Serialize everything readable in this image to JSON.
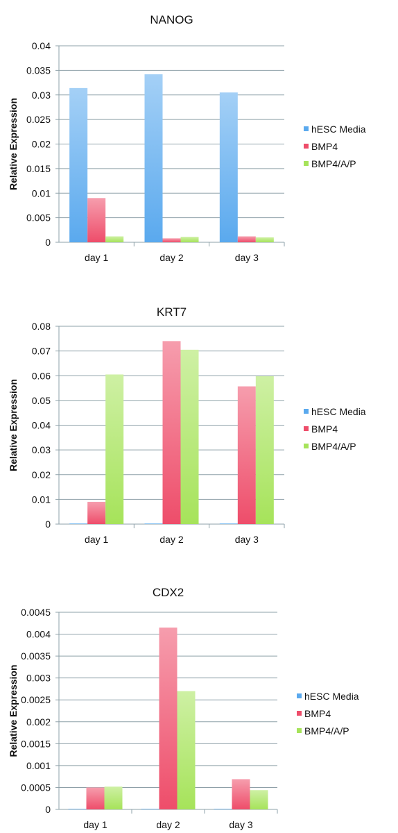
{
  "chart_data": [
    {
      "type": "bar",
      "title": "NANOG",
      "ylabel": "Relative Expression",
      "categories": [
        "day 1",
        "day 2",
        "day 3"
      ],
      "ylim": [
        0,
        0.04
      ],
      "yticks": [
        "0",
        "0.005",
        "0.01",
        "0.015",
        "0.02",
        "0.025",
        "0.03",
        "0.035",
        "0.04"
      ],
      "grid": true,
      "legend_position": "right",
      "series": [
        {
          "name": "hESC Media",
          "color": "#5aa9ee",
          "values": [
            0.0314,
            0.0342,
            0.0305
          ]
        },
        {
          "name": "BMP4",
          "color": "#ee4d6a",
          "values": [
            0.009,
            0.0008,
            0.0012
          ]
        },
        {
          "name": "BMP4/A/P",
          "color": "#a6e35a",
          "values": [
            0.0012,
            0.0011,
            0.001
          ]
        }
      ]
    },
    {
      "type": "bar",
      "title": "KRT7",
      "ylabel": "Relative Expression",
      "categories": [
        "day 1",
        "day 2",
        "day 3"
      ],
      "ylim": [
        0,
        0.08
      ],
      "yticks": [
        "0",
        "0.01",
        "0.02",
        "0.03",
        "0.04",
        "0.05",
        "0.06",
        "0.07",
        "0.08"
      ],
      "grid": true,
      "legend_position": "right",
      "series": [
        {
          "name": "hESC Media",
          "color": "#5aa9ee",
          "values": [
            0.0002,
            0.0002,
            0.0002
          ]
        },
        {
          "name": "BMP4",
          "color": "#ee4d6a",
          "values": [
            0.009,
            0.074,
            0.0557
          ]
        },
        {
          "name": "BMP4/A/P",
          "color": "#a6e35a",
          "values": [
            0.0605,
            0.0705,
            0.0598
          ]
        }
      ]
    },
    {
      "type": "bar",
      "title": "CDX2",
      "ylabel": "Relative Expression",
      "categories": [
        "day 1",
        "day 2",
        "day 3"
      ],
      "ylim": [
        0,
        0.0045
      ],
      "yticks": [
        "0",
        "0.0005",
        "0.001",
        "0.0015",
        "0.002",
        "0.0025",
        "0.003",
        "0.0035",
        "0.004",
        "0.0045"
      ],
      "grid": true,
      "legend_position": "right",
      "series": [
        {
          "name": "hESC Media",
          "color": "#5aa9ee",
          "values": [
            1e-05,
            1e-05,
            1e-05
          ]
        },
        {
          "name": "BMP4",
          "color": "#ee4d6a",
          "values": [
            0.0005,
            0.00415,
            0.00069
          ]
        },
        {
          "name": "BMP4/A/P",
          "color": "#a6e35a",
          "values": [
            0.00052,
            0.0027,
            0.00044
          ]
        }
      ]
    }
  ]
}
